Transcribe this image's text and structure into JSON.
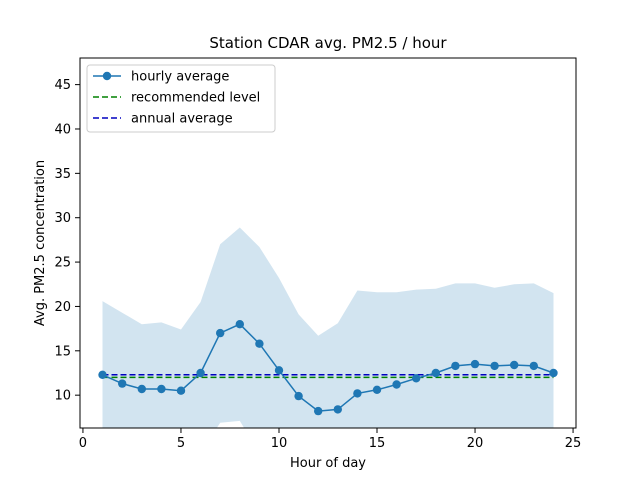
{
  "chart_data": {
    "type": "line",
    "title": "Station CDAR avg. PM2.5 / hour",
    "xlabel": "Hour of day",
    "ylabel": "Avg. PM2.5 concentration",
    "xlim": [
      -0.15,
      25.15
    ],
    "ylim": [
      6.3,
      48.0
    ],
    "xticks": [
      0,
      5,
      10,
      15,
      20,
      25
    ],
    "yticks": [
      10,
      15,
      20,
      25,
      30,
      35,
      40,
      45
    ],
    "grid": false,
    "legend_position": "top-left",
    "x": [
      1,
      2,
      3,
      4,
      5,
      6,
      7,
      8,
      9,
      10,
      11,
      12,
      13,
      14,
      15,
      16,
      17,
      18,
      19,
      20,
      21,
      22,
      23,
      24
    ],
    "series": [
      {
        "name": "hourly average",
        "style": "line-marker",
        "color": "#1f77b4",
        "values": [
          12.3,
          11.3,
          10.7,
          10.7,
          10.5,
          12.5,
          17.0,
          18.0,
          15.8,
          12.8,
          9.9,
          8.2,
          8.4,
          10.2,
          10.6,
          11.2,
          11.9,
          12.5,
          13.3,
          13.5,
          13.3,
          13.4,
          13.3,
          12.5
        ]
      },
      {
        "name": "recommended level",
        "style": "dashed",
        "color": "#008000",
        "values": [
          12,
          12,
          12,
          12,
          12,
          12,
          12,
          12,
          12,
          12,
          12,
          12,
          12,
          12,
          12,
          12,
          12,
          12,
          12,
          12,
          12,
          12,
          12,
          12
        ]
      },
      {
        "name": "annual average",
        "style": "dashed",
        "color": "#0000bf",
        "values": [
          12.3,
          12.3,
          12.3,
          12.3,
          12.3,
          12.3,
          12.3,
          12.3,
          12.3,
          12.3,
          12.3,
          12.3,
          12.3,
          12.3,
          12.3,
          12.3,
          12.3,
          12.3,
          12.3,
          12.3,
          12.3,
          12.3,
          12.3,
          12.3
        ]
      }
    ],
    "band": {
      "color": "#1f77b4",
      "opacity": 0.2,
      "upper": [
        20.6,
        19.3,
        18.0,
        18.2,
        17.4,
        20.5,
        27.0,
        28.9,
        26.7,
        23.2,
        19.1,
        16.7,
        18.1,
        21.8,
        21.6,
        21.6,
        21.9,
        22.0,
        22.6,
        22.6,
        22.1,
        22.5,
        22.6,
        21.5
      ],
      "lower": [
        3.5,
        3.5,
        3.5,
        3.5,
        3.5,
        3.5,
        6.9,
        7.1,
        3.5,
        3.5,
        3.5,
        3.5,
        3.5,
        3.5,
        3.5,
        3.5,
        3.5,
        3.5,
        3.5,
        3.5,
        3.5,
        3.5,
        3.5,
        3.5
      ]
    }
  }
}
